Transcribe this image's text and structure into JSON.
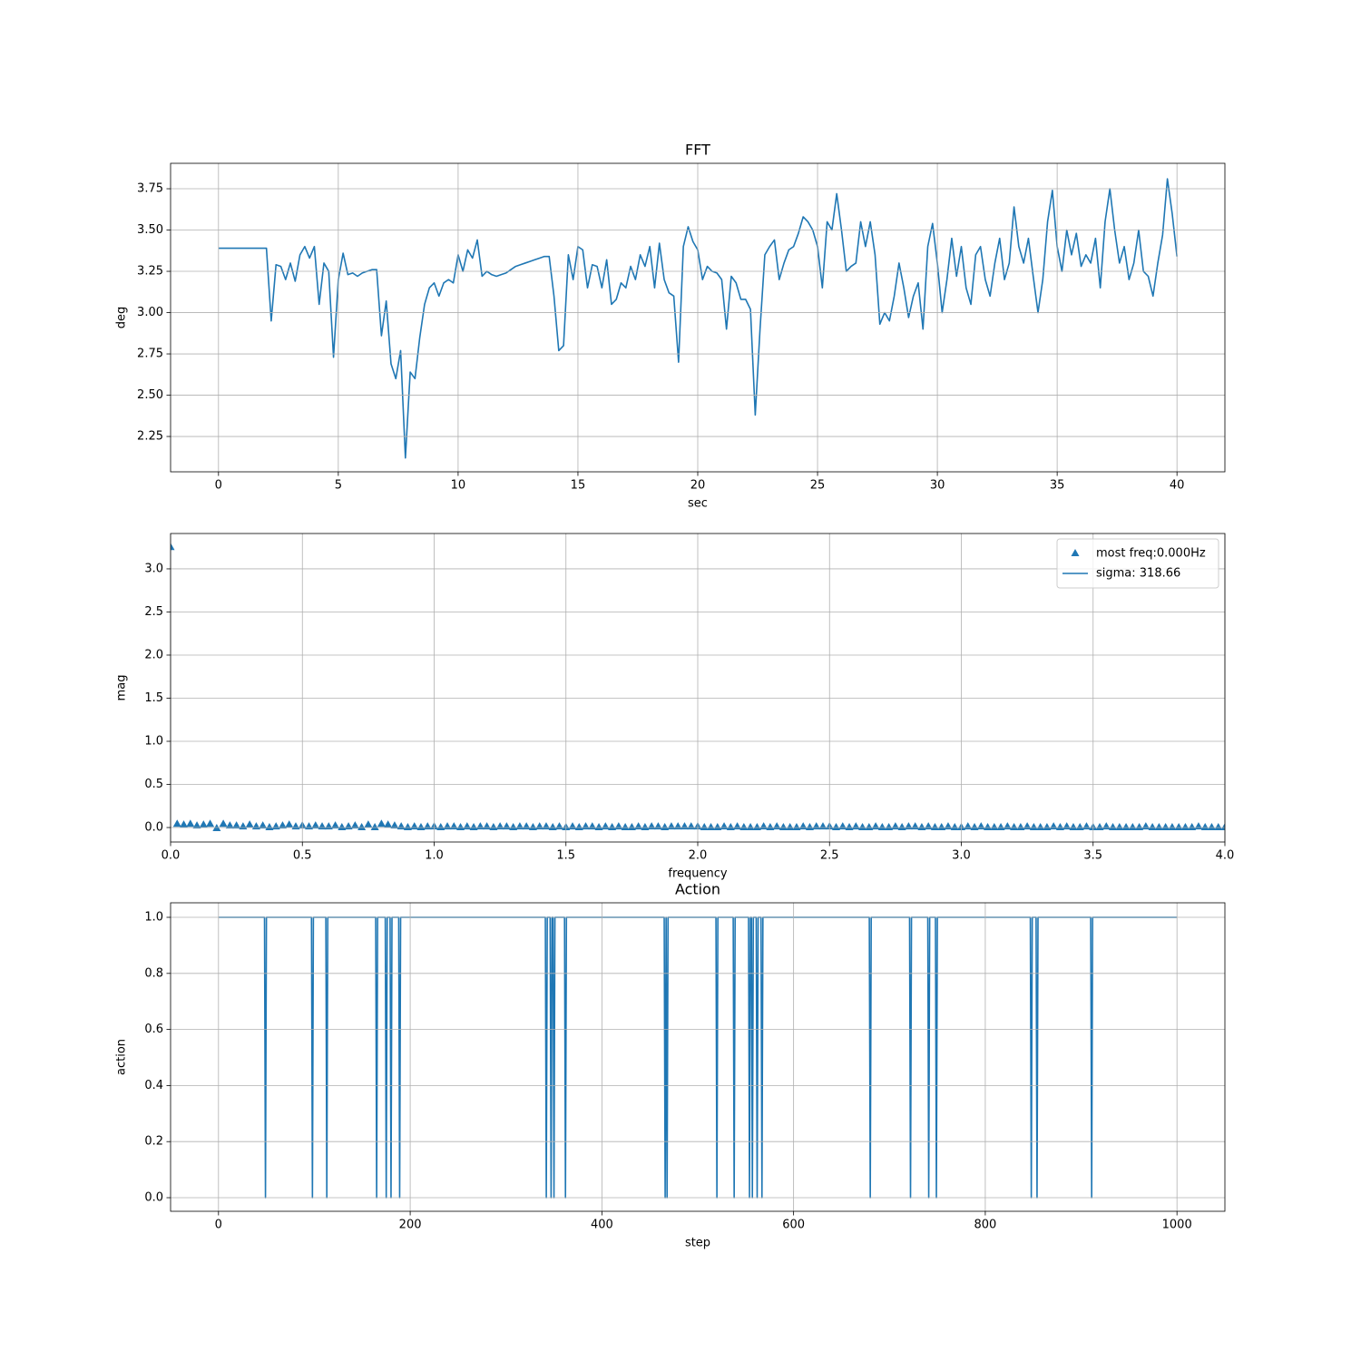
{
  "chart_data": [
    {
      "type": "line",
      "title": "FFT",
      "x_label": "sec",
      "y_label": "deg",
      "color": "#1f77b4",
      "grid": true,
      "xlim": [
        -2,
        42
      ],
      "ylim": [
        2.036,
        3.904
      ],
      "xticks": [
        0,
        5,
        10,
        15,
        20,
        25,
        30,
        35,
        40
      ],
      "yticks": [
        2.25,
        {
          "value": 2.5,
          "label": "2.50"
        },
        2.75,
        {
          "value": 3.0,
          "label": "3.00"
        },
        3.25,
        {
          "value": 3.5,
          "label": "3.50"
        },
        3.75
      ],
      "x": [
        0,
        0.2,
        0.4,
        0.6,
        0.8,
        1,
        1.2,
        1.4,
        1.6,
        1.8,
        2,
        2.2,
        2.4,
        2.6,
        2.8,
        3,
        3.2,
        3.4,
        3.6,
        3.8,
        4,
        4.2,
        4.4,
        4.6,
        4.8,
        5,
        5.2,
        5.4,
        5.6,
        5.8,
        6,
        6.2,
        6.4,
        6.6,
        6.8,
        7,
        7.2,
        7.4,
        7.6,
        7.8,
        8,
        8.2,
        8.4,
        8.6,
        8.8,
        9,
        9.2,
        9.4,
        9.6,
        9.8,
        10,
        10.2,
        10.4,
        10.6,
        10.8,
        11,
        11.2,
        11.4,
        11.6,
        11.8,
        12,
        12.2,
        12.4,
        12.6,
        12.8,
        13,
        13.2,
        13.4,
        13.6,
        13.8,
        14,
        14.2,
        14.4,
        14.6,
        14.8,
        15,
        15.2,
        15.4,
        15.6,
        15.8,
        16,
        16.2,
        16.4,
        16.6,
        16.8,
        17,
        17.2,
        17.4,
        17.6,
        17.8,
        18,
        18.2,
        18.4,
        18.6,
        18.8,
        19,
        19.2,
        19.4,
        19.6,
        19.8,
        20,
        20.2,
        20.4,
        20.6,
        20.8,
        21,
        21.2,
        21.4,
        21.6,
        21.8,
        22,
        22.2,
        22.4,
        22.6,
        22.8,
        23,
        23.2,
        23.4,
        23.6,
        23.8,
        24,
        24.2,
        24.4,
        24.6,
        24.8,
        25,
        25.2,
        25.4,
        25.6,
        25.8,
        26,
        26.2,
        26.4,
        26.6,
        26.8,
        27,
        27.2,
        27.4,
        27.6,
        27.8,
        28,
        28.2,
        28.4,
        28.6,
        28.8,
        29,
        29.2,
        29.4,
        29.6,
        29.8,
        30,
        30.2,
        30.4,
        30.6,
        30.8,
        31,
        31.2,
        31.4,
        31.6,
        31.8,
        32,
        32.2,
        32.4,
        32.6,
        32.8,
        33,
        33.2,
        33.4,
        33.6,
        33.8,
        34,
        34.2,
        34.4,
        34.6,
        34.8,
        35,
        35.2,
        35.4,
        35.6,
        35.8,
        36,
        36.2,
        36.4,
        36.6,
        36.8,
        37,
        37.2,
        37.4,
        37.6,
        37.8,
        38,
        38.2,
        38.4,
        38.6,
        38.8,
        39,
        39.2,
        39.4,
        39.6,
        39.8,
        40
      ],
      "values": [
        3.39,
        3.39,
        3.39,
        3.39,
        3.39,
        3.39,
        3.39,
        3.39,
        3.39,
        3.39,
        3.39,
        2.95,
        3.29,
        3.28,
        3.2,
        3.3,
        3.19,
        3.35,
        3.4,
        3.33,
        3.4,
        3.05,
        3.3,
        3.25,
        2.73,
        3.2,
        3.36,
        3.23,
        3.24,
        3.22,
        3.24,
        3.25,
        3.26,
        3.26,
        2.86,
        3.07,
        2.69,
        2.6,
        2.77,
        2.12,
        2.64,
        2.6,
        2.85,
        3.05,
        3.15,
        3.18,
        3.1,
        3.18,
        3.2,
        3.18,
        3.35,
        3.25,
        3.38,
        3.33,
        3.44,
        3.22,
        3.25,
        3.23,
        3.22,
        3.23,
        3.24,
        3.26,
        3.28,
        3.29,
        3.3,
        3.31,
        3.32,
        3.33,
        3.34,
        3.34,
        3.1,
        2.77,
        2.8,
        3.35,
        3.2,
        3.4,
        3.38,
        3.15,
        3.29,
        3.28,
        3.15,
        3.32,
        3.05,
        3.08,
        3.18,
        3.15,
        3.28,
        3.2,
        3.35,
        3.28,
        3.4,
        3.15,
        3.42,
        3.2,
        3.12,
        3.1,
        2.7,
        3.4,
        3.52,
        3.43,
        3.38,
        3.2,
        3.28,
        3.25,
        3.24,
        3.2,
        2.9,
        3.22,
        3.18,
        3.08,
        3.08,
        3.02,
        2.38,
        2.9,
        3.35,
        3.4,
        3.44,
        3.2,
        3.3,
        3.38,
        3.4,
        3.48,
        3.58,
        3.55,
        3.5,
        3.4,
        3.15,
        3.55,
        3.5,
        3.72,
        3.5,
        3.25,
        3.28,
        3.3,
        3.55,
        3.4,
        3.55,
        3.35,
        2.93,
        3.0,
        2.95,
        3.1,
        3.3,
        3.15,
        2.97,
        3.1,
        3.18,
        2.9,
        3.4,
        3.54,
        3.3,
        3.0,
        3.2,
        3.45,
        3.22,
        3.4,
        3.15,
        3.05,
        3.35,
        3.4,
        3.2,
        3.1,
        3.3,
        3.45,
        3.2,
        3.3,
        3.64,
        3.4,
        3.3,
        3.45,
        3.22,
        3.0,
        3.2,
        3.55,
        3.74,
        3.4,
        3.25,
        3.5,
        3.35,
        3.48,
        3.28,
        3.35,
        3.3,
        3.45,
        3.15,
        3.55,
        3.75,
        3.5,
        3.3,
        3.4,
        3.2,
        3.3,
        3.5,
        3.25,
        3.22,
        3.1,
        3.3,
        3.47,
        3.81,
        3.6,
        3.34
      ]
    },
    {
      "type": "scatter",
      "x_label": "frequency",
      "y_label": "mag",
      "grid": true,
      "legend": "upper right",
      "xlim": [
        0,
        4
      ],
      "ylim": [
        -0.168,
        3.41
      ],
      "xticks": [
        {
          "value": 0,
          "label": "0.0"
        },
        0.5,
        {
          "value": 1,
          "label": "1.0"
        },
        1.5,
        {
          "value": 2,
          "label": "2.0"
        },
        2.5,
        {
          "value": 3,
          "label": "3.0"
        },
        3.5,
        {
          "value": 4,
          "label": "4.0"
        }
      ],
      "yticks": [
        {
          "value": 0,
          "label": "0.0"
        },
        0.5,
        {
          "value": 1,
          "label": "1.0"
        },
        1.5,
        {
          "value": 2,
          "label": "2.0"
        },
        2.5,
        {
          "value": 3,
          "label": "3.0"
        }
      ],
      "series": [
        {
          "name": "most freq:0.000Hz",
          "color": "#1f77b4",
          "marker": "triangle",
          "x": [
            0,
            0.025,
            0.05,
            0.075,
            0.1,
            0.125,
            0.15,
            0.175,
            0.2,
            0.225,
            0.25,
            0.275,
            0.3,
            0.325,
            0.35,
            0.375,
            0.4,
            0.425,
            0.45,
            0.475,
            0.5,
            0.525,
            0.55,
            0.575,
            0.6,
            0.625,
            0.65,
            0.675,
            0.7,
            0.725,
            0.75,
            0.775,
            0.8,
            0.825,
            0.85,
            0.875,
            0.9,
            0.925,
            0.95,
            0.975,
            1,
            1.025,
            1.05,
            1.075,
            1.1,
            1.125,
            1.15,
            1.175,
            1.2,
            1.225,
            1.25,
            1.275,
            1.3,
            1.325,
            1.35,
            1.375,
            1.4,
            1.425,
            1.45,
            1.475,
            1.5,
            1.525,
            1.55,
            1.575,
            1.6,
            1.625,
            1.65,
            1.675,
            1.7,
            1.725,
            1.75,
            1.775,
            1.8,
            1.825,
            1.85,
            1.875,
            1.9,
            1.925,
            1.95,
            1.975,
            2,
            2.025,
            2.05,
            2.075,
            2.1,
            2.125,
            2.15,
            2.175,
            2.2,
            2.225,
            2.25,
            2.275,
            2.3,
            2.325,
            2.35,
            2.375,
            2.4,
            2.425,
            2.45,
            2.475,
            2.5,
            2.525,
            2.55,
            2.575,
            2.6,
            2.625,
            2.65,
            2.675,
            2.7,
            2.725,
            2.75,
            2.775,
            2.8,
            2.825,
            2.85,
            2.875,
            2.9,
            2.925,
            2.95,
            2.975,
            3,
            3.025,
            3.05,
            3.075,
            3.1,
            3.125,
            3.15,
            3.175,
            3.2,
            3.225,
            3.25,
            3.275,
            3.3,
            3.325,
            3.35,
            3.375,
            3.4,
            3.425,
            3.45,
            3.475,
            3.5,
            3.525,
            3.55,
            3.575,
            3.6,
            3.625,
            3.65,
            3.675,
            3.7,
            3.725,
            3.75,
            3.775,
            3.8,
            3.825,
            3.85,
            3.875,
            3.9,
            3.925,
            3.95,
            3.975,
            4
          ],
          "values": [
            3.25,
            0.04,
            0.03,
            0.04,
            0.02,
            0.03,
            0.04,
            -0.01,
            0.04,
            0.02,
            0.02,
            0.01,
            0.03,
            0.01,
            0.02,
            0.0,
            0.01,
            0.02,
            0.03,
            0.01,
            0.02,
            0.01,
            0.02,
            0.01,
            0.01,
            0.02,
            0.0,
            0.01,
            0.02,
            0.0,
            0.03,
            0.0,
            0.04,
            0.03,
            0.02,
            0.01,
            0.0,
            0.01,
            0.0,
            0.01,
            0.01,
            0.0,
            0.01,
            0.01,
            0.0,
            0.01,
            0.0,
            0.01,
            0.01,
            0.0,
            0.01,
            0.01,
            0.0,
            0.01,
            0.01,
            0.0,
            0.01,
            0.01,
            0.0,
            0.01,
            0.0,
            0.01,
            0.0,
            0.01,
            0.01,
            0.0,
            0.01,
            0.0,
            0.01,
            0.0,
            0.0,
            0.01,
            0.0,
            0.01,
            0.01,
            0.0,
            0.01,
            0.01,
            0.01,
            0.01,
            0.01,
            0.0,
            0.0,
            0.0,
            0.01,
            0.0,
            0.01,
            0.0,
            0.0,
            0.0,
            0.01,
            0.0,
            0.01,
            0.0,
            0.0,
            0.0,
            0.01,
            0.0,
            0.01,
            0.01,
            0.01,
            0.0,
            0.01,
            0.0,
            0.01,
            0.0,
            0.0,
            0.01,
            0.0,
            0.0,
            0.01,
            0.0,
            0.01,
            0.01,
            0.0,
            0.01,
            0.0,
            0.0,
            0.01,
            0.0,
            0.0,
            0.01,
            0.0,
            0.01,
            0.0,
            0.0,
            0.0,
            0.01,
            0.0,
            0.0,
            0.01,
            0.0,
            0.0,
            0.0,
            0.01,
            0.0,
            0.01,
            0.0,
            0.0,
            0.01,
            0.0,
            0.0,
            0.01,
            0.0,
            0.0,
            0.0,
            0.0,
            0.0,
            0.01,
            0.0,
            0.0,
            0.0,
            0.0,
            0.0,
            0.0,
            0.0,
            0.01,
            0.0,
            0.0,
            0.0,
            0.0
          ]
        },
        {
          "name": "sigma: 318.66",
          "color": "#1f77b4",
          "x": [],
          "values": []
        }
      ]
    },
    {
      "type": "line",
      "title": "Action",
      "x_label": "step",
      "y_label": "action",
      "color": "#1f77b4",
      "grid": true,
      "xlim": [
        -50,
        1050
      ],
      "ylim": [
        -0.0485,
        1.0518
      ],
      "xticks": [
        0,
        200,
        400,
        600,
        800,
        1000
      ],
      "yticks": [
        {
          "value": 0,
          "label": "0.0"
        },
        0.2,
        0.4,
        0.6,
        0.8,
        {
          "value": 1,
          "label": "1.0"
        }
      ],
      "x": [
        0,
        48,
        49,
        50,
        97,
        98,
        99,
        112,
        113,
        114,
        164,
        165,
        166,
        174,
        175,
        176,
        179,
        180,
        181,
        188,
        189,
        190,
        341,
        342,
        343,
        346,
        347,
        348,
        349,
        350,
        351,
        361,
        362,
        363,
        465,
        466,
        467,
        468,
        469,
        519,
        520,
        521,
        537,
        538,
        539,
        553,
        554,
        555,
        556,
        557,
        558,
        561,
        562,
        563,
        566,
        567,
        568,
        679,
        680,
        681,
        721,
        722,
        723,
        740,
        741,
        742,
        748,
        749,
        750,
        847,
        848,
        849,
        853,
        854,
        855,
        910,
        911,
        912,
        1000
      ],
      "values": [
        1,
        1,
        0,
        1,
        1,
        0,
        1,
        1,
        0,
        1,
        1,
        0,
        1,
        1,
        0,
        1,
        1,
        0,
        1,
        1,
        0,
        1,
        1,
        0,
        1,
        1,
        0,
        1,
        1,
        0,
        1,
        1,
        0,
        1,
        1,
        0,
        1,
        0,
        1,
        1,
        0,
        1,
        1,
        0,
        1,
        1,
        0,
        1,
        1,
        0,
        1,
        1,
        0,
        1,
        1,
        0,
        1,
        1,
        0,
        1,
        1,
        0,
        1,
        1,
        0,
        1,
        1,
        0,
        1,
        1,
        0,
        1,
        1,
        0,
        1,
        1,
        0,
        1,
        1
      ]
    }
  ]
}
